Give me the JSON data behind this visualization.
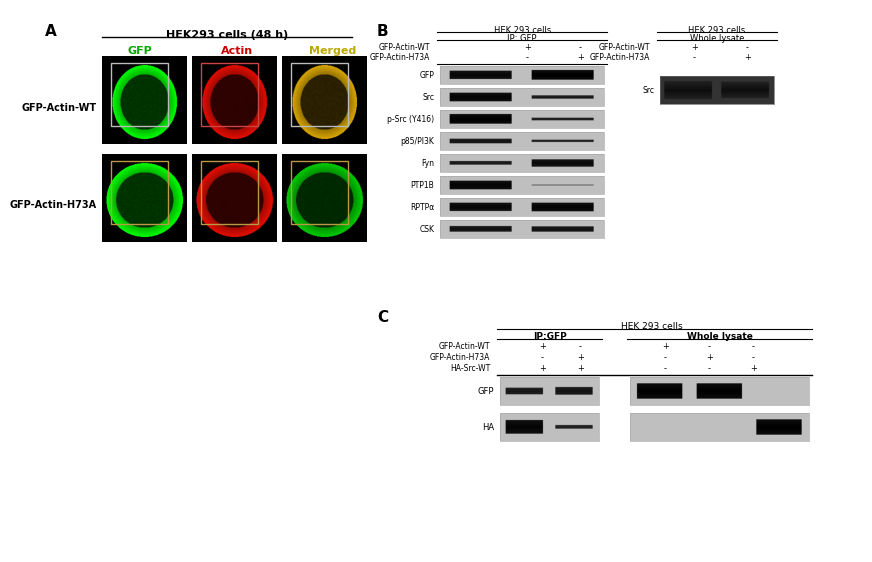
{
  "bg_color": "#ffffff",
  "panel_A": {
    "label": "A",
    "title": "HEK293 cells (48 h)",
    "col_labels": [
      "GFP",
      "Actin",
      "Merged"
    ],
    "col_label_colors": [
      "#00aa00",
      "#cc0000",
      "#bbaa00"
    ],
    "row_labels": [
      "GFP-Actin-WT",
      "GFP-Actin-H73A"
    ],
    "title_fontsize": 8,
    "row_label_fontsize": 7,
    "col_label_fontsize": 8
  },
  "panel_B": {
    "label": "B",
    "left_title1": "HEK 293 cells",
    "left_title2": "IP: GFP",
    "right_title1": "HEK 293 cells",
    "right_title2": "Whole lysate",
    "row_labels_left": [
      "GFP-Actin-WT",
      "GFP-Actin-H73A"
    ],
    "row_vals_left": [
      [
        "+",
        "-"
      ],
      [
        "-",
        "+"
      ]
    ],
    "row_labels_right": [
      "GFP-Actin-WT",
      "GFP-Actin-H73A"
    ],
    "row_vals_right": [
      [
        "+",
        "-"
      ],
      [
        "-",
        "+"
      ]
    ],
    "band_labels": [
      "GFP",
      "Src",
      "p-Src (Y416)",
      "p85/PI3K",
      "Fyn",
      "PTP1B",
      "RPTPα",
      "CSK"
    ],
    "right_band_label": "Src"
  },
  "panel_C": {
    "label": "C",
    "main_title": "HEK 293 cells",
    "left_title": "IP:GFP",
    "right_title": "Whole lysate",
    "row_labels": [
      "GFP-Actin-WT",
      "GFP-Actin-H73A",
      "HA-Src-WT"
    ],
    "row_vals_left": [
      [
        "+",
        "-"
      ],
      [
        "-",
        "+"
      ],
      [
        "+",
        "+"
      ]
    ],
    "row_vals_right": [
      [
        "+",
        "-",
        "-"
      ],
      [
        "-",
        "+",
        "-"
      ],
      [
        "-",
        "-",
        "+"
      ]
    ],
    "band_labels": [
      "GFP",
      "HA"
    ]
  }
}
